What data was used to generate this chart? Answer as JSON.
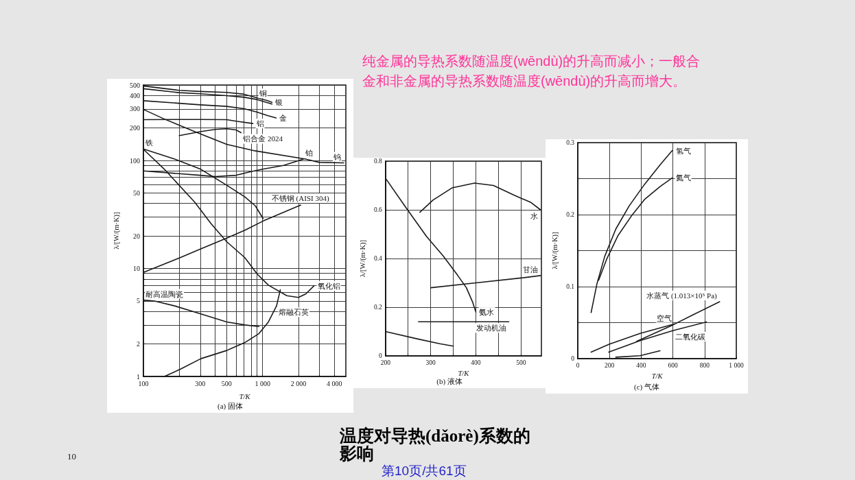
{
  "chart_data": [
    {
      "type": "other",
      "title": "温度对导热(dǎorè)系数的影响",
      "subtitle": "纯金属的导热系数随温度(wēndù)的升高而减小；一般合金和非金属的导热系数随温度(wēndù)的升高而增大。",
      "annotations": [
        "10",
        "第10页/共61页"
      ]
    },
    {
      "type": "line",
      "title": "(a) 固体",
      "xlabel": "T/K",
      "ylabel": "λ/[W/(m·K)]",
      "log": "xy",
      "xlim": [
        100,
        5000
      ],
      "ylim": [
        1,
        500
      ],
      "xticks": [
        100,
        {
          "value": 200,
          "label": null
        },
        300,
        {
          "value": 400,
          "label": null
        },
        500,
        {
          "value": 600,
          "label": null
        },
        {
          "value": 700,
          "label": null
        },
        {
          "value": 800,
          "label": null
        },
        {
          "value": 900,
          "label": null
        },
        {
          "value": 1000,
          "label": "1 000"
        },
        {
          "value": 2000,
          "label": "2 000"
        },
        {
          "value": 3000,
          "label": null
        },
        {
          "value": 4000,
          "label": "4 000"
        }
      ],
      "yticks": [
        1,
        2,
        {
          "value": 3,
          "label": null
        },
        {
          "value": 4,
          "label": null
        },
        5,
        {
          "value": 6,
          "label": null
        },
        {
          "value": 7,
          "label": null
        },
        {
          "value": 8,
          "label": null
        },
        {
          "value": 9,
          "label": null
        },
        10,
        20,
        {
          "value": 30,
          "label": null
        },
        {
          "value": 40,
          "label": null
        },
        50,
        {
          "value": 60,
          "label": null
        },
        {
          "value": 70,
          "label": null
        },
        {
          "value": 80,
          "label": null
        },
        {
          "value": 90,
          "label": null
        },
        100,
        200,
        300,
        400,
        500
      ],
      "grid": true,
      "marker": "none",
      "line_style": "solid",
      "series": [
        {
          "name": "银",
          "color": "#1a1a1a",
          "x": [
            100,
            200,
            300,
            500,
            700,
            900,
            1100,
            1200
          ],
          "values": [
            490,
            446,
            436,
            427,
            411,
            380,
            358,
            346
          ]
        },
        {
          "name": "铜",
          "color": "#1a1a1a",
          "x": [
            100,
            200,
            300,
            500,
            700,
            900,
            1200
          ],
          "values": [
            462,
            425,
            415,
            399,
            385,
            367,
            333
          ]
        },
        {
          "name": "金",
          "color": "#1a1a1a",
          "x": [
            100,
            300,
            500,
            700,
            900,
            1100,
            1300
          ],
          "values": [
            358,
            328,
            317,
            302,
            281,
            261,
            248
          ]
        },
        {
          "name": "铝",
          "color": "#1a1a1a",
          "x": [
            100,
            300,
            500,
            600,
            830
          ],
          "values": [
            239,
            240,
            239,
            231,
            220
          ]
        },
        {
          "name": "铝合金 2024",
          "color": "#1a1a1a",
          "x": [
            200,
            300,
            400,
            500,
            600,
            660
          ],
          "values": [
            170,
            185,
            194,
            197,
            192,
            181
          ]
        },
        {
          "name": "钨",
          "color": "#1a1a1a",
          "x": [
            100,
            150,
            270,
            500,
            860,
            2300,
            3000,
            4800
          ],
          "values": [
            297,
            242,
            185,
            141,
            123,
            103,
            96,
            95
          ]
        },
        {
          "name": "铂",
          "color": "#1a1a1a",
          "x": [
            100,
            300,
            400,
            600,
            800,
            1000,
            1500,
            2200
          ],
          "values": [
            80,
            73,
            71,
            73,
            79,
            83,
            90,
            103
          ]
        },
        {
          "name": "铁",
          "color": "#1a1a1a",
          "x": [
            100,
            183,
            303,
            500,
            710,
            870,
            1010
          ],
          "values": [
            128,
            103,
            83,
            59,
            46,
            38,
            29
          ]
        },
        {
          "name": "不锈钢 (AISI 304)",
          "color": "#1a1a1a",
          "x": [
            100,
            200,
            300,
            500,
            710,
            1010,
            2090
          ],
          "values": [
            9.2,
            12.5,
            15.1,
            19.1,
            22.6,
            27.5,
            38.7
          ]
        },
        {
          "name": "氧化铝",
          "color": "#1a1a1a",
          "x": [
            100,
            150,
            270,
            370,
            500,
            710,
            900,
            1120,
            1600,
            2000,
            2300,
            2700
          ],
          "values": [
            127,
            83,
            41,
            26,
            17.7,
            12.6,
            8.9,
            7.0,
            5.6,
            5.4,
            5.8,
            6.9
          ]
        },
        {
          "name": "耐高温陶瓷",
          "color": "#1a1a1a",
          "x": [
            100,
            124,
            183,
            303,
            500,
            710,
            935
          ],
          "values": [
            5.1,
            5.0,
            4.5,
            3.8,
            3.2,
            3.0,
            2.9
          ]
        },
        {
          "name": "熔融石英",
          "color": "#1a1a1a",
          "x": [
            150,
            205,
            303,
            500,
            710,
            935,
            1120,
            1310,
            1410
          ],
          "values": [
            1.0,
            1.17,
            1.46,
            1.74,
            2.06,
            2.5,
            3.2,
            4.5,
            6.35
          ]
        }
      ]
    },
    {
      "type": "line",
      "title": "(b) 液体",
      "xlabel": "T/K",
      "ylabel": "λ/[W/(m·K)]",
      "xlim": [
        200,
        545
      ],
      "ylim": [
        0,
        0.8
      ],
      "xticks": [
        200,
        {
          "value": 250,
          "label": null
        },
        300,
        {
          "value": 350,
          "label": null
        },
        400,
        {
          "value": 450,
          "label": null
        },
        500
      ],
      "yticks": [
        0,
        0.2,
        0.4,
        0.6,
        0.8
      ],
      "grid": true,
      "marker": "none",
      "line_style": "solid",
      "series": [
        {
          "name": "水",
          "color": "#1a1a1a",
          "x": [
            276,
            305,
            347,
            397,
            439,
            485,
            522,
            543
          ],
          "values": [
            0.59,
            0.64,
            0.69,
            0.71,
            0.7,
            0.66,
            0.63,
            0.6
          ]
        },
        {
          "name": "氨水",
          "color": "#1a1a1a",
          "x": [
            200,
            245,
            291,
            328,
            360,
            379,
            393,
            400
          ],
          "values": [
            0.73,
            0.61,
            0.49,
            0.41,
            0.33,
            0.28,
            0.22,
            0.18
          ]
        },
        {
          "name": "甘油",
          "color": "#1a1a1a",
          "x": [
            300,
            400,
            500,
            543
          ],
          "values": [
            0.28,
            0.3,
            0.32,
            0.33
          ]
        },
        {
          "name": "发动机油",
          "color": "#1a1a1a",
          "x": [
            273,
            473
          ],
          "values": [
            0.14,
            0.14
          ]
        },
        {
          "color": "#1a1a1a",
          "x": [
            200,
            270,
            320,
            350
          ],
          "values": [
            0.1,
            0.07,
            0.05,
            0.04
          ]
        }
      ]
    },
    {
      "type": "line",
      "title": "(c) 气体",
      "xlabel": "T/K",
      "ylabel": "λ/[W/(m·K)]",
      "xlim": [
        0,
        1000
      ],
      "ylim": [
        0,
        0.3
      ],
      "xticks": [
        0,
        200,
        400,
        600,
        800,
        {
          "value": 1000,
          "label": "1 000"
        }
      ],
      "yticks": [
        0,
        {
          "value": 0.05,
          "label": null
        },
        0.1,
        {
          "value": 0.15,
          "label": null
        },
        0.2,
        {
          "value": 0.25,
          "label": null
        },
        0.3
      ],
      "grid": true,
      "marker": "none",
      "line_style": "solid",
      "series": [
        {
          "name": "氢气",
          "color": "#1a1a1a",
          "x": [
            84,
            121,
            170,
            240,
            324,
            421,
            519,
            596
          ],
          "values": [
            0.064,
            0.104,
            0.142,
            0.18,
            0.212,
            0.242,
            0.269,
            0.289
          ]
        },
        {
          "name": "氦气",
          "color": "#1a1a1a",
          "x": [
            132,
            184,
            254,
            338,
            421,
            519,
            596
          ],
          "values": [
            0.109,
            0.139,
            0.171,
            0.198,
            0.221,
            0.239,
            0.251
          ]
        },
        {
          "name": "空气",
          "color": "#1a1a1a",
          "x": [
            84,
            198,
            393,
            609
          ],
          "values": [
            0.009,
            0.02,
            0.035,
            0.048
          ]
        },
        {
          "name": "水蒸气 (1.013×10⁵ Pa)",
          "color": "#1a1a1a",
          "x": [
            372,
            491,
            602,
            728,
            895
          ],
          "values": [
            0.024,
            0.036,
            0.047,
            0.061,
            0.079
          ]
        },
        {
          "name": "二氧化碳",
          "color": "#1a1a1a",
          "x": [
            195,
            393,
            602,
            812
          ],
          "values": [
            0.009,
            0.025,
            0.039,
            0.051
          ]
        },
        {
          "color": "#1a1a1a",
          "x": [
            240,
            393,
            519
          ],
          "values": [
            0.002,
            0.004,
            0.011
          ]
        }
      ]
    }
  ]
}
